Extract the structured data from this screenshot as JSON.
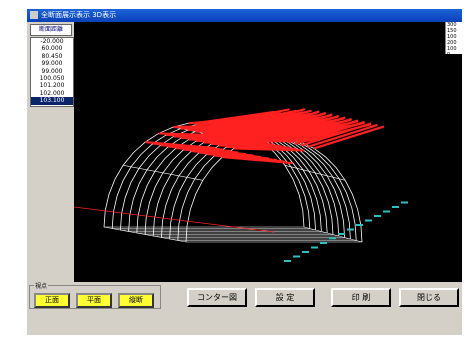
{
  "window": {
    "title": "全断面展示表示 3D表示"
  },
  "left_panel": {
    "header": "断面距離",
    "items": [
      "-20.000",
      "60.000",
      "80.450",
      "99.000",
      "99.000",
      "100.050",
      "101.200",
      "102.000",
      "103.100"
    ],
    "selected_index": 8
  },
  "legend": {
    "labels": [
      "300",
      "150",
      "100",
      "200",
      "100",
      "0"
    ]
  },
  "viewpoint": {
    "label": "視点",
    "buttons": [
      "正面",
      "平面",
      "縦断"
    ]
  },
  "actions": {
    "contour": "コンター図",
    "settings": "設 定",
    "print": "印 刷",
    "close": "閉じる"
  },
  "colors": {
    "profile": "#ffffff",
    "rib": "#ff2020",
    "floor_label": "#2fc0c0",
    "title_bar": "#1c64d8"
  }
}
